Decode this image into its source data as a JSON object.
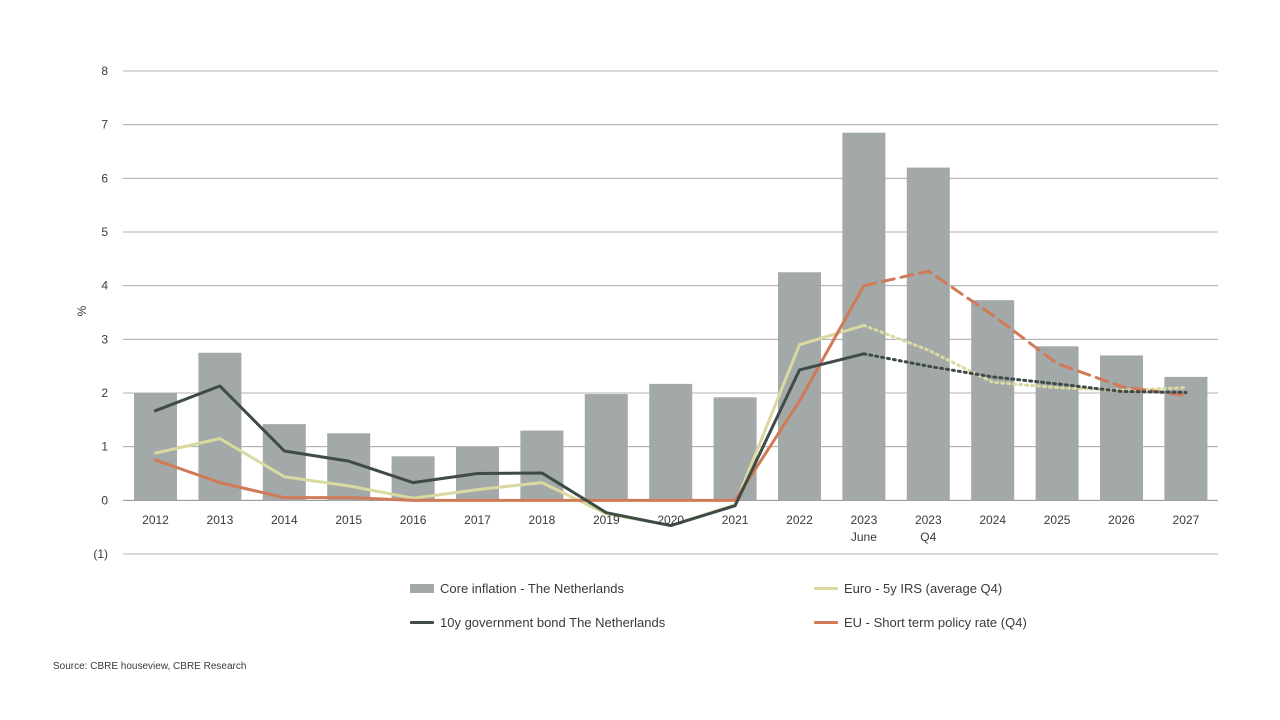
{
  "chart_data": {
    "type": "bar",
    "categories": [
      "2012",
      "2013",
      "2014",
      "2015",
      "2016",
      "2017",
      "2018",
      "2019",
      "2020",
      "2021",
      "2022",
      "2023",
      "2023",
      "2024",
      "2025",
      "2026",
      "2027"
    ],
    "category_sublabels": [
      "",
      "",
      "",
      "",
      "",
      "",
      "",
      "",
      "",
      "",
      "",
      "June",
      "Q4",
      "",
      "",
      "",
      ""
    ],
    "ylabel": "%",
    "ylim": [
      -1,
      8
    ],
    "y_ticks": [
      -1,
      0,
      1,
      2,
      3,
      4,
      5,
      6,
      7,
      8
    ],
    "y_tick_labels": [
      "(1)",
      "0",
      "1",
      "2",
      "3",
      "4",
      "5",
      "6",
      "7",
      "8"
    ],
    "grid": true,
    "bars": {
      "name": "Core inflation - The Netherlands",
      "color": "#a3a8a8",
      "values": [
        2.0,
        2.75,
        1.42,
        1.25,
        0.82,
        1.0,
        1.3,
        1.98,
        2.17,
        1.92,
        4.25,
        6.85,
        6.2,
        3.73,
        2.87,
        2.7,
        2.3
      ]
    },
    "series": [
      {
        "name": "Euro - 5y IRS (average Q4)",
        "color": "#d9d9a0",
        "values": [
          0.88,
          1.15,
          0.44,
          0.27,
          0.04,
          0.2,
          0.33,
          -0.25,
          -0.47,
          -0.08,
          2.9,
          3.26,
          2.8,
          2.2,
          2.1,
          2.05,
          2.1
        ],
        "forecast_start_index": 11,
        "forecast_style": "dotted"
      },
      {
        "name": "10y government bond The Netherlands",
        "color": "#3f4b48",
        "values": [
          1.67,
          2.13,
          0.92,
          0.73,
          0.33,
          0.5,
          0.51,
          -0.23,
          -0.47,
          -0.1,
          2.43,
          2.73,
          2.5,
          2.3,
          2.17,
          2.03,
          2.01
        ],
        "forecast_start_index": 11,
        "forecast_style": "dotted"
      },
      {
        "name": "EU - Short term policy rate (Q4)",
        "color": "#d17a57",
        "values": [
          0.75,
          0.33,
          0.05,
          0.05,
          0.0,
          0.0,
          0.0,
          0.0,
          0.0,
          0.0,
          1.85,
          4.0,
          4.27,
          3.45,
          2.55,
          2.12,
          1.95
        ],
        "forecast_start_index": 11,
        "forecast_style": "dashed"
      }
    ],
    "legend_position": "bottom"
  },
  "legend": {
    "item1": "Core inflation - The Netherlands",
    "item2": "Euro - 5y IRS (average Q4)",
    "item3": "10y government bond The Netherlands",
    "item4": "EU - Short term policy rate (Q4)"
  },
  "source": "Source: CBRE houseview, CBRE Research"
}
